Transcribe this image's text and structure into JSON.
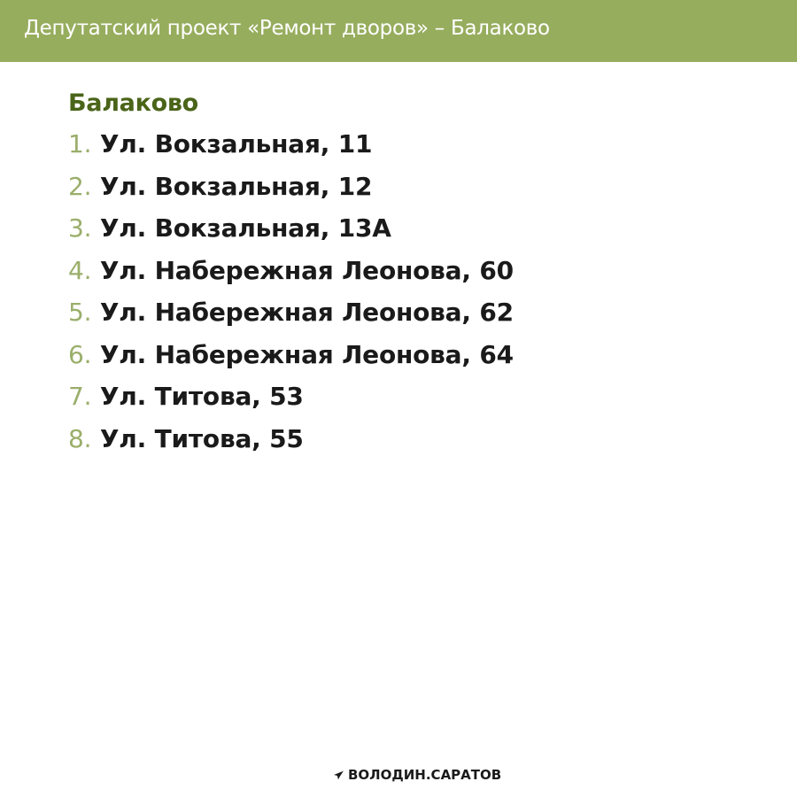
{
  "header": {
    "title": "Депутатский проект «Ремонт дворов» – Балаково"
  },
  "heading": "Балаково",
  "items": [
    {
      "num": "1.",
      "text": "Ул. Вокзальная, 11"
    },
    {
      "num": "2.",
      "text": "Ул. Вокзальная, 12"
    },
    {
      "num": "3.",
      "text": "Ул. Вокзальная, 13А"
    },
    {
      "num": "4.",
      "text": "Ул. Набережная Леонова, 60"
    },
    {
      "num": "5.",
      "text": "Ул. Набережная Леонова, 62"
    },
    {
      "num": "6.",
      "text": "Ул. Набережная Леонова, 64"
    },
    {
      "num": "7.",
      "text": "Ул. Титова, 53"
    },
    {
      "num": "8.",
      "text": "Ул. Титова, 55"
    }
  ],
  "footer": {
    "icon": "telegram-icon",
    "label": "ВОЛОДИН.САРАТОВ"
  },
  "colors": {
    "header_bg": "#97ad5e",
    "heading": "#4a6419",
    "number": "#9aae6a"
  }
}
